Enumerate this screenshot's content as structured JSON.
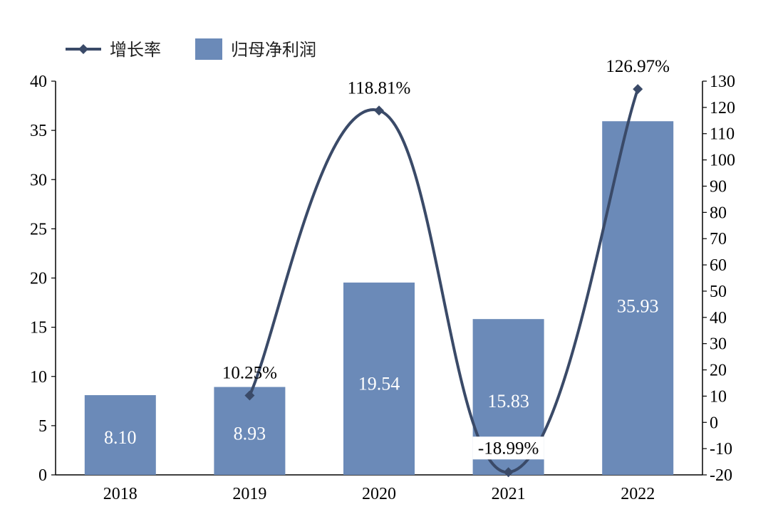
{
  "chart_data": {
    "type": "bar",
    "categories": [
      "2018",
      "2019",
      "2020",
      "2021",
      "2022"
    ],
    "series": [
      {
        "name": "归母净利润",
        "type": "bar",
        "axis": "left",
        "values": [
          8.1,
          8.93,
          19.54,
          15.83,
          35.93
        ],
        "labels": [
          "8.10",
          "8.93",
          "19.54",
          "15.83",
          "35.93"
        ],
        "color": "#6b8ab8"
      },
      {
        "name": "增长率",
        "type": "line",
        "axis": "right",
        "values": [
          null,
          10.25,
          118.81,
          -18.99,
          126.97
        ],
        "labels": [
          "",
          "10.25%",
          "118.81%",
          "-18.99%",
          "126.97%"
        ],
        "color": "#3a4a68"
      }
    ],
    "y_left": {
      "min": 0,
      "max": 40,
      "ticks": [
        "0",
        "5",
        "10",
        "15",
        "20",
        "25",
        "30",
        "35",
        "40"
      ]
    },
    "y_right": {
      "min": -20,
      "max": 130,
      "ticks": [
        "-20",
        "-10",
        "0",
        "10",
        "20",
        "30",
        "40",
        "50",
        "60",
        "70",
        "80",
        "90",
        "100",
        "110",
        "120",
        "130"
      ]
    },
    "legend_position": "top-left",
    "grid": false
  }
}
